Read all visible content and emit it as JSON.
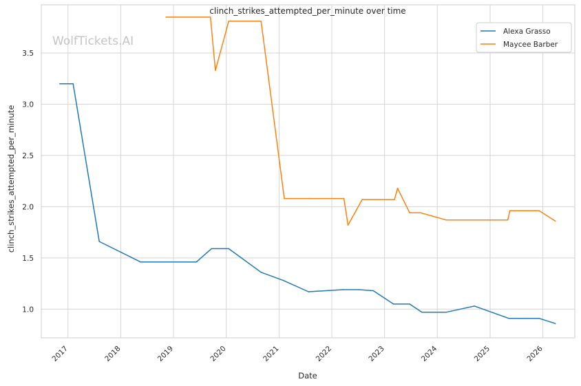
{
  "chart_data": {
    "type": "line",
    "title": "clinch_strikes_attempted_per_minute over time",
    "xlabel": "Date",
    "ylabel": "clinch_strikes_attempted_per_minute",
    "watermark": "WolfTickets.AI",
    "x_ticks": [
      "2017",
      "2018",
      "2019",
      "2020",
      "2021",
      "2022",
      "2023",
      "2024",
      "2025",
      "2026"
    ],
    "y_ticks": [
      "1.0",
      "1.5",
      "2.0",
      "2.5",
      "3.0",
      "3.5"
    ],
    "xlim": [
      "2016-06-30",
      "2026-08-10"
    ],
    "ylim": [
      0.72,
      3.97
    ],
    "grid": true,
    "legend_position": "top-right",
    "series": [
      {
        "name": "Alexa Grasso",
        "color": "#1f77b4",
        "points": [
          [
            "2016-11-05",
            3.2
          ],
          [
            "2017-02-05",
            3.2
          ],
          [
            "2017-08-05",
            1.66
          ],
          [
            "2018-05-19",
            1.46
          ],
          [
            "2019-06-08",
            1.46
          ],
          [
            "2019-09-21",
            1.59
          ],
          [
            "2020-01-18",
            1.59
          ],
          [
            "2020-08-29",
            1.36
          ],
          [
            "2021-01-30",
            1.28
          ],
          [
            "2021-07-24",
            1.17
          ],
          [
            "2022-03-19",
            1.19
          ],
          [
            "2022-07-09",
            1.19
          ],
          [
            "2022-10-15",
            1.18
          ],
          [
            "2023-03-04",
            1.05
          ],
          [
            "2023-06-24",
            1.05
          ],
          [
            "2023-09-16",
            0.97
          ],
          [
            "2024-03-02",
            0.97
          ],
          [
            "2024-09-14",
            1.03
          ],
          [
            "2025-05-10",
            0.91
          ],
          [
            "2025-12-06",
            0.91
          ],
          [
            "2026-03-28",
            0.86
          ]
        ]
      },
      {
        "name": "Maycee Barber",
        "color": "#ff7f0e",
        "points": [
          [
            "2018-11-10",
            3.85
          ],
          [
            "2019-09-14",
            3.85
          ],
          [
            "2019-10-18",
            3.33
          ],
          [
            "2020-01-18",
            3.81
          ],
          [
            "2020-08-29",
            3.81
          ],
          [
            "2021-02-06",
            2.08
          ],
          [
            "2021-07-31",
            2.08
          ],
          [
            "2022-03-26",
            2.08
          ],
          [
            "2022-04-23",
            1.82
          ],
          [
            "2022-07-30",
            2.07
          ],
          [
            "2023-03-11",
            2.07
          ],
          [
            "2023-04-01",
            2.18
          ],
          [
            "2023-06-24",
            1.94
          ],
          [
            "2023-09-09",
            1.94
          ],
          [
            "2024-03-02",
            1.87
          ],
          [
            "2025-05-03",
            1.87
          ],
          [
            "2025-05-17",
            1.96
          ],
          [
            "2025-12-06",
            1.96
          ],
          [
            "2026-03-28",
            1.86
          ]
        ]
      }
    ]
  }
}
